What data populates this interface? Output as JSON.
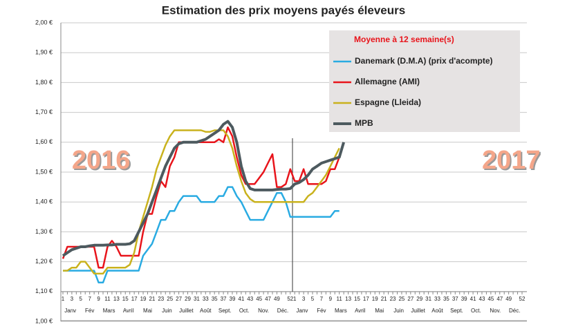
{
  "chart_data": {
    "type": "line",
    "title": "Estimation des prix moyens payés éleveurs",
    "legend_title": "Moyenne à  12 semaine(s)",
    "annotations": [
      {
        "text": "2016",
        "at": 2
      },
      {
        "text": "2017",
        "at": 94
      }
    ],
    "categories": [
      "1",
      null,
      "3",
      null,
      "5",
      null,
      "7",
      null,
      "9",
      null,
      "11",
      null,
      "13",
      null,
      "15",
      null,
      "17",
      null,
      "19",
      null,
      "21",
      null,
      "23",
      null,
      "25",
      null,
      "27",
      null,
      "29",
      null,
      "31",
      null,
      "33",
      null,
      "35",
      null,
      "37",
      null,
      "39",
      null,
      "41",
      null,
      "43",
      null,
      "45",
      null,
      "47",
      null,
      "49",
      null,
      null,
      "52",
      "1",
      null,
      "3",
      null,
      "5",
      null,
      "7",
      null,
      "9",
      null,
      "11",
      null,
      "13",
      null,
      "15",
      null,
      "17",
      null,
      "19",
      null,
      "21",
      null,
      "23",
      null,
      "25",
      null,
      "27",
      null,
      "29",
      null,
      "31",
      null,
      "33",
      null,
      "35",
      null,
      "37",
      null,
      "39",
      null,
      "41",
      null,
      "43",
      null,
      "45",
      null,
      "47",
      null,
      "49",
      null,
      null,
      "52"
    ],
    "months": [
      "Janv",
      "Fév",
      "Mars",
      "Avril",
      "Mai",
      "Juin",
      "Juillet",
      "Août",
      "Sept.",
      "Oct.",
      "Nov.",
      "Déc.",
      "Janv",
      "Fév",
      "Mars",
      "Avril",
      "Mai",
      "Juin",
      "Juillet",
      "Août",
      "Sept.",
      "Oct.",
      "Nov.",
      "Déc."
    ],
    "series": [
      {
        "name": "Danemark (D.M.A) (prix d'acompte)",
        "color": "#29abe2",
        "width": 2.5,
        "values": [
          1.17,
          1.17,
          1.17,
          1.17,
          1.17,
          1.17,
          1.17,
          1.17,
          1.13,
          1.13,
          1.17,
          1.17,
          1.17,
          1.17,
          1.17,
          1.17,
          1.17,
          1.17,
          1.22,
          1.24,
          1.26,
          1.3,
          1.34,
          1.34,
          1.37,
          1.37,
          1.4,
          1.42,
          1.42,
          1.42,
          1.42,
          1.4,
          1.4,
          1.4,
          1.4,
          1.42,
          1.42,
          1.45,
          1.45,
          1.42,
          1.4,
          1.37,
          1.34,
          1.34,
          1.34,
          1.34,
          1.37,
          1.4,
          1.43,
          1.43,
          1.4,
          1.35,
          1.35,
          1.35,
          1.35,
          1.35,
          1.35,
          1.35,
          1.35,
          1.35,
          1.35,
          1.37,
          1.37,
          null,
          null,
          null,
          null,
          null,
          null,
          null,
          null,
          null,
          null,
          null,
          null,
          null,
          null,
          null,
          null,
          null,
          null,
          null,
          null,
          null,
          null,
          null,
          null,
          null,
          null,
          null,
          null,
          null,
          null,
          null,
          null,
          null,
          null,
          null,
          null,
          null,
          null,
          null,
          null,
          null
        ]
      },
      {
        "name": "Allemagne (AMI)",
        "color": "#e8141b",
        "width": 2.5,
        "values": [
          1.21,
          1.25,
          1.25,
          1.25,
          1.25,
          1.25,
          1.25,
          1.25,
          1.18,
          1.18,
          1.25,
          1.27,
          1.25,
          1.22,
          1.22,
          1.22,
          1.22,
          1.22,
          1.3,
          1.36,
          1.36,
          1.42,
          1.47,
          1.45,
          1.52,
          1.55,
          1.6,
          1.6,
          1.6,
          1.6,
          1.6,
          1.6,
          1.6,
          1.6,
          1.6,
          1.61,
          1.6,
          1.65,
          1.62,
          1.55,
          1.49,
          1.46,
          1.46,
          1.46,
          1.48,
          1.5,
          1.53,
          1.56,
          1.45,
          1.45,
          1.46,
          1.51,
          1.47,
          1.47,
          1.51,
          1.46,
          1.46,
          1.46,
          1.46,
          1.47,
          1.51,
          1.51,
          1.55,
          null,
          null,
          null,
          null,
          null,
          null,
          null,
          null,
          null,
          null,
          null,
          null,
          null,
          null,
          null,
          null,
          null,
          null,
          null,
          null,
          null,
          null,
          null,
          null,
          null,
          null,
          null,
          null,
          null,
          null,
          null,
          null,
          null,
          null,
          null,
          null,
          null,
          null,
          null,
          null,
          null
        ]
      },
      {
        "name": "Espagne (Lleida)",
        "color": "#c9b21d",
        "width": 2.5,
        "values": [
          1.17,
          1.17,
          1.18,
          1.18,
          1.2,
          1.2,
          1.18,
          1.16,
          1.16,
          1.16,
          1.18,
          1.18,
          1.18,
          1.18,
          1.18,
          1.19,
          1.23,
          1.3,
          1.35,
          1.4,
          1.45,
          1.51,
          1.55,
          1.59,
          1.62,
          1.64,
          1.64,
          1.64,
          1.64,
          1.64,
          1.64,
          1.64,
          1.635,
          1.635,
          1.64,
          1.64,
          1.64,
          1.62,
          1.58,
          1.52,
          1.47,
          1.43,
          1.41,
          1.4,
          1.4,
          1.4,
          1.4,
          1.4,
          1.4,
          1.4,
          1.4,
          1.4,
          1.4,
          1.4,
          1.4,
          1.42,
          1.43,
          1.45,
          1.47,
          1.49,
          1.52,
          1.55,
          1.58,
          null,
          null,
          null,
          null,
          null,
          null,
          null,
          null,
          null,
          null,
          null,
          null,
          null,
          null,
          null,
          null,
          null,
          null,
          null,
          null,
          null,
          null,
          null,
          null,
          null,
          null,
          null,
          null,
          null,
          null,
          null,
          null,
          null,
          null,
          null,
          null,
          null,
          null,
          null,
          null,
          null
        ]
      },
      {
        "name": "MPB",
        "color": "#4d5a5f",
        "width": 4,
        "values": [
          1.22,
          1.23,
          1.24,
          1.245,
          1.25,
          1.25,
          1.253,
          1.255,
          1.255,
          1.255,
          1.256,
          1.256,
          1.258,
          1.258,
          1.258,
          1.26,
          1.27,
          1.3,
          1.33,
          1.36,
          1.4,
          1.44,
          1.48,
          1.52,
          1.55,
          1.58,
          1.595,
          1.6,
          1.6,
          1.6,
          1.6,
          1.605,
          1.61,
          1.62,
          1.63,
          1.64,
          1.66,
          1.67,
          1.65,
          1.6,
          1.52,
          1.47,
          1.445,
          1.44,
          1.44,
          1.44,
          1.44,
          1.44,
          1.442,
          1.443,
          1.443,
          1.445,
          1.46,
          1.465,
          1.475,
          1.49,
          1.51,
          1.52,
          1.53,
          1.535,
          1.54,
          1.545,
          1.55,
          1.6,
          null,
          null,
          null,
          null,
          null,
          null,
          null,
          null,
          null,
          null,
          null,
          null,
          null,
          null,
          null,
          null,
          null,
          null,
          null,
          null,
          null,
          null,
          null,
          null,
          null,
          null,
          null,
          null,
          null,
          null,
          null,
          null,
          null,
          null,
          null,
          null,
          null,
          null,
          null,
          null
        ]
      }
    ],
    "ylim": [
      1,
      2
    ],
    "yticks": [
      {
        "value": 1,
        "label": "1,00 €"
      },
      {
        "value": 1.1,
        "label": "1,10 €"
      },
      {
        "value": 1.2,
        "label": "1,20 €"
      },
      {
        "value": 1.3,
        "label": "1,30 €"
      },
      {
        "value": 1.4,
        "label": "1,40 €"
      },
      {
        "value": 1.5,
        "label": "1,50 €"
      },
      {
        "value": 1.6,
        "label": "1,60 €"
      },
      {
        "value": 1.7,
        "label": "1,70 €"
      },
      {
        "value": 1.8,
        "label": "1,80 €"
      },
      {
        "value": 1.9,
        "label": "1,90 €"
      },
      {
        "value": 2,
        "label": "2,00 €"
      }
    ],
    "grid": true
  }
}
